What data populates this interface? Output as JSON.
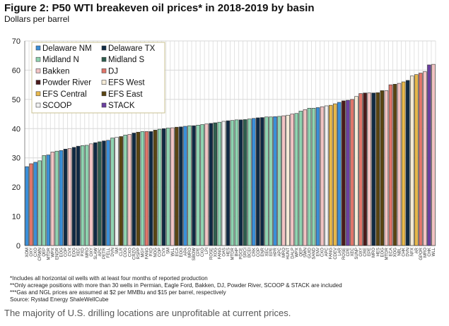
{
  "chart_data": {
    "type": "bar",
    "title": "Figure 2: P50 WTI breakeven oil prices* in 2018-2019 by basin",
    "subtitle": "Dollars per barrel",
    "ylabel": "Dollars per barrel",
    "ylim": [
      0,
      70
    ],
    "yticks": [
      0,
      10,
      20,
      30,
      40,
      50,
      60,
      70
    ],
    "grid": true,
    "legend_placement": "top-left",
    "basins": [
      {
        "name": "Delaware NM",
        "color": "#3a8fd9"
      },
      {
        "name": "Delaware TX",
        "color": "#0f2a44"
      },
      {
        "name": "Midland N",
        "color": "#8fd3b0"
      },
      {
        "name": "Midland S",
        "color": "#2e5e4e"
      },
      {
        "name": "Bakken",
        "color": "#f2c4c4"
      },
      {
        "name": "DJ",
        "color": "#e0756a"
      },
      {
        "name": "Powder River",
        "color": "#4a1a1a"
      },
      {
        "name": "EFS West",
        "color": "#f6ecd8"
      },
      {
        "name": "EFS Central",
        "color": "#e8b84a"
      },
      {
        "name": "EFS East",
        "color": "#5a4512"
      },
      {
        "name": "SCOOP",
        "color": "#f0f0f0"
      },
      {
        "name": "STACK",
        "color": "#6b3fa0"
      }
    ],
    "categories": [
      "XOM",
      "OXY",
      "CXO",
      "CRWN",
      "QEP",
      "MTDR",
      "WPX",
      "ENDR",
      "EOG",
      "COP",
      "CVX",
      "EOG",
      "XEC",
      "PXD",
      "MRO",
      "OXY",
      "SLAW",
      "APC",
      "PETR",
      "FELL",
      "DVN",
      "SM",
      "CLR",
      "COG",
      "CXO",
      "CRZO",
      "RSPP",
      "MGY",
      "FANG",
      "PXD",
      "NOG",
      "COP",
      "CVX",
      "SM",
      "WLL",
      "ECA",
      "EOG",
      "APA",
      "MRO",
      "SBOW",
      "CPE",
      "CXO",
      "LPI",
      "ROSE",
      "XOG",
      "FANG",
      "OAS",
      "HES",
      "MTDR",
      "BHP",
      "PDCE",
      "SRCI",
      "BCEI",
      "CRK",
      "COP",
      "ENR",
      "XEC",
      "EPE",
      "HPR",
      "APC",
      "MRO",
      "HUNT",
      "DALP",
      "WPX",
      "QEP",
      "SWN",
      "GUID",
      "SAND",
      "ENV",
      "CXO",
      "APC",
      "FANG",
      "CDEV",
      "LAR",
      "ROSE",
      "CPE",
      "XEC",
      "SUNP",
      "OXY",
      "CRE",
      "EPE",
      "MRO",
      "HES",
      "EOG",
      "MTDR",
      "ECA",
      "XOG",
      "NBL",
      "CHK",
      "DVN",
      "NFX",
      "AR",
      "GPOR",
      "MRO",
      "CHK",
      "WLL"
    ],
    "values": [
      27,
      28,
      28.5,
      29,
      30.8,
      31,
      32,
      32.3,
      32.5,
      33,
      33.2,
      33.6,
      34,
      34.2,
      34.3,
      34.8,
      35.2,
      35.5,
      35.8,
      36,
      36.8,
      37,
      37.3,
      37.8,
      38,
      38.5,
      38.8,
      39,
      39,
      39,
      39.5,
      39.8,
      40,
      40.2,
      40.3,
      40.5,
      40.6,
      40.8,
      41,
      41,
      41.2,
      41.4,
      41.6,
      41.8,
      42,
      42.2,
      42.5,
      42.7,
      42.8,
      43,
      43,
      43.1,
      43.3,
      43.5,
      43.7,
      43.8,
      44,
      44,
      44.1,
      44.2,
      44.4,
      44.6,
      45,
      45.2,
      46,
      46.5,
      47,
      47,
      47.2,
      47.5,
      47.8,
      48,
      48.5,
      49,
      49.5,
      49.7,
      50,
      51,
      52,
      52.2,
      52.2,
      52.2,
      52.3,
      53,
      53,
      55,
      55.2,
      55.5,
      56,
      56.5,
      58,
      58.5,
      59,
      59.5,
      61.8,
      62
    ],
    "basin_index": [
      0,
      5,
      0,
      2,
      2,
      0,
      4,
      2,
      0,
      1,
      4,
      1,
      1,
      2,
      2,
      4,
      1,
      3,
      1,
      0,
      2,
      10,
      9,
      2,
      4,
      1,
      9,
      2,
      5,
      1,
      9,
      2,
      1,
      2,
      4,
      9,
      1,
      0,
      2,
      1,
      2,
      2,
      4,
      1,
      3,
      2,
      10,
      1,
      2,
      2,
      1,
      3,
      2,
      0,
      1,
      1,
      2,
      2,
      0,
      2,
      4,
      7,
      4,
      2,
      2,
      4,
      2,
      2,
      0,
      4,
      10,
      8,
      8,
      0,
      6,
      11,
      5,
      7,
      5,
      6,
      4,
      1,
      9,
      9,
      4,
      5,
      9,
      4,
      8,
      1,
      7,
      8,
      5,
      4,
      11,
      4
    ]
  },
  "notes": [
    "*Includes all horizontal oil wells with at least four months of reported production",
    "**Only acreage positions with more than 30 wells in Permian, Eagle Ford, Bakken, DJ, Powder River, SCOOP & STACK are included",
    "***Gas and NGL prices are assumed at $2 per MMBtu and $15 per barrel, respectively",
    "Source: Rystad Energy ShaleWellCube"
  ],
  "caption": "The majority of U.S. drilling locations are unprofitable at current prices."
}
